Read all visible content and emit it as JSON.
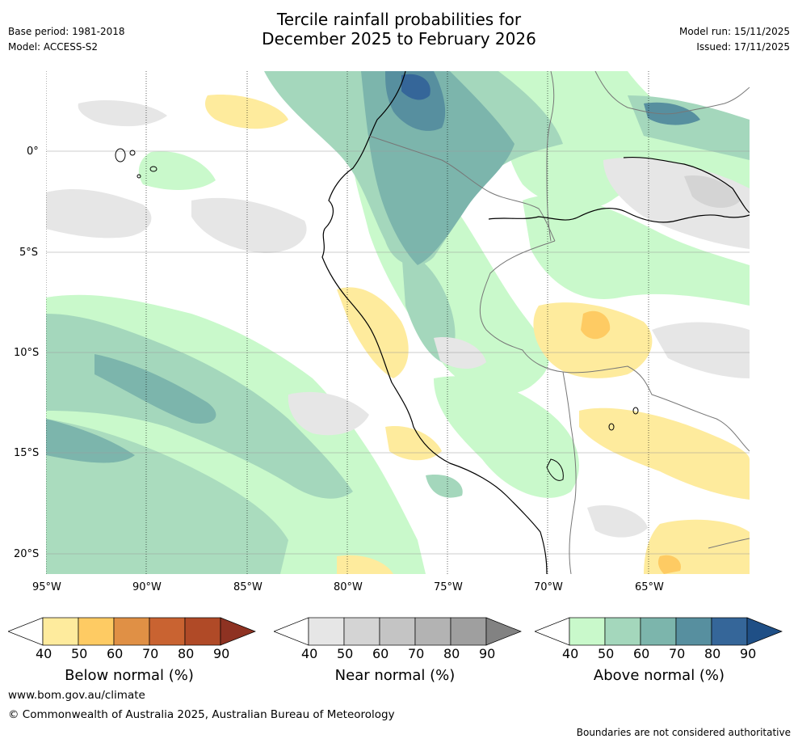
{
  "header": {
    "base_period": "Base period: 1981-2018",
    "model": "Model: ACCESS-S2",
    "title_line1": "Tercile rainfall probabilities for",
    "title_line2": "December 2025 to February 2026",
    "model_run": "Model run: 15/11/2025",
    "issued": "Issued: 17/11/2025"
  },
  "map": {
    "lon_labels": [
      "95°W",
      "90°W",
      "85°W",
      "80°W",
      "75°W",
      "70°W",
      "65°W"
    ],
    "lat_labels": [
      "0°",
      "5°S",
      "10°S",
      "15°S",
      "20°S"
    ]
  },
  "legend": {
    "tick_values": [
      "40",
      "50",
      "60",
      "70",
      "80",
      "90"
    ],
    "below": {
      "name": "Below normal (%)",
      "colors": [
        "#ffffff",
        "#feeb9d",
        "#fecb63",
        "#e09045",
        "#c96331",
        "#b04a27",
        "#8e3222"
      ]
    },
    "near": {
      "name": "Near normal (%)",
      "colors": [
        "#ffffff",
        "#e6e6e6",
        "#d4d4d4",
        "#c4c4c4",
        "#b3b3b3",
        "#9f9f9f",
        "#828282"
      ]
    },
    "above": {
      "name": "Above normal (%)",
      "colors": [
        "#ffffff",
        "#c9f9cb",
        "#a4d7bc",
        "#7cb5ac",
        "#578f9f",
        "#356699",
        "#1f4f86"
      ]
    }
  },
  "footer": {
    "website": "www.bom.gov.au/climate",
    "copyright": "© Commonwealth of Australia 2025, Australian Bureau of Meteorology",
    "disclaimer": "Boundaries are not considered authoritative"
  }
}
